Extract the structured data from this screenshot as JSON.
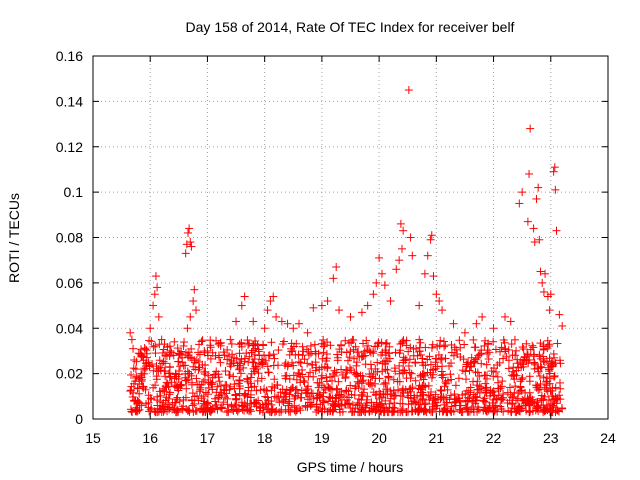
{
  "chart_data": {
    "type": "scatter",
    "title": "Day 158 of 2014, Rate Of TEC Index for receiver belf",
    "xlabel": "GPS time / hours",
    "ylabel": "ROTI / TECUs",
    "xlim": [
      15,
      24
    ],
    "ylim": [
      0,
      0.16
    ],
    "xticks": [
      "15",
      "16",
      "17",
      "18",
      "19",
      "20",
      "21",
      "22",
      "23",
      "24"
    ],
    "yticks": [
      "0",
      "0.02",
      "0.04",
      "0.06",
      "0.08",
      "0.1",
      "0.12",
      "0.14",
      "0.16"
    ],
    "grid": true,
    "marker": "+",
    "color": "#ff0000",
    "series": [
      {
        "name": "ROTI",
        "points": [
          [
            15.65,
            0.038
          ],
          [
            15.68,
            0.035
          ],
          [
            15.7,
            0.031
          ],
          [
            15.72,
            0.026
          ],
          [
            15.75,
            0.022
          ],
          [
            15.8,
            0.029
          ],
          [
            16.0,
            0.04
          ],
          [
            16.05,
            0.05
          ],
          [
            16.08,
            0.055
          ],
          [
            16.1,
            0.063
          ],
          [
            16.12,
            0.058
          ],
          [
            16.15,
            0.045
          ],
          [
            16.2,
            0.035
          ],
          [
            16.25,
            0.033
          ],
          [
            16.35,
            0.03
          ],
          [
            16.5,
            0.029
          ],
          [
            16.62,
            0.073
          ],
          [
            16.64,
            0.077
          ],
          [
            16.66,
            0.082
          ],
          [
            16.68,
            0.084
          ],
          [
            16.7,
            0.078
          ],
          [
            16.72,
            0.076
          ],
          [
            16.65,
            0.04
          ],
          [
            16.7,
            0.045
          ],
          [
            16.75,
            0.052
          ],
          [
            16.77,
            0.057
          ],
          [
            16.8,
            0.048
          ],
          [
            17.0,
            0.03
          ],
          [
            17.2,
            0.028
          ],
          [
            17.4,
            0.035
          ],
          [
            17.5,
            0.043
          ],
          [
            17.6,
            0.05
          ],
          [
            17.65,
            0.054
          ],
          [
            17.8,
            0.043
          ],
          [
            18.0,
            0.04
          ],
          [
            18.05,
            0.048
          ],
          [
            18.1,
            0.052
          ],
          [
            18.15,
            0.054
          ],
          [
            18.2,
            0.045
          ],
          [
            18.3,
            0.043
          ],
          [
            18.4,
            0.042
          ],
          [
            18.5,
            0.04
          ],
          [
            18.6,
            0.042
          ],
          [
            18.75,
            0.038
          ],
          [
            18.85,
            0.049
          ],
          [
            19.0,
            0.05
          ],
          [
            19.1,
            0.052
          ],
          [
            19.2,
            0.062
          ],
          [
            19.25,
            0.067
          ],
          [
            19.3,
            0.048
          ],
          [
            19.5,
            0.045
          ],
          [
            19.7,
            0.047
          ],
          [
            19.8,
            0.05
          ],
          [
            19.9,
            0.055
          ],
          [
            19.95,
            0.06
          ],
          [
            20.0,
            0.071
          ],
          [
            20.05,
            0.064
          ],
          [
            20.1,
            0.059
          ],
          [
            20.2,
            0.052
          ],
          [
            20.3,
            0.066
          ],
          [
            20.35,
            0.07
          ],
          [
            20.4,
            0.075
          ],
          [
            20.38,
            0.086
          ],
          [
            20.42,
            0.083
          ],
          [
            20.55,
            0.08
          ],
          [
            20.58,
            0.072
          ],
          [
            20.52,
            0.145
          ],
          [
            20.7,
            0.05
          ],
          [
            20.8,
            0.064
          ],
          [
            20.85,
            0.072
          ],
          [
            20.9,
            0.079
          ],
          [
            20.92,
            0.081
          ],
          [
            20.95,
            0.063
          ],
          [
            21.0,
            0.055
          ],
          [
            21.05,
            0.052
          ],
          [
            21.1,
            0.048
          ],
          [
            21.3,
            0.042
          ],
          [
            21.5,
            0.038
          ],
          [
            21.7,
            0.042
          ],
          [
            21.8,
            0.045
          ],
          [
            22.0,
            0.04
          ],
          [
            22.2,
            0.045
          ],
          [
            22.3,
            0.043
          ],
          [
            22.45,
            0.095
          ],
          [
            22.5,
            0.1
          ],
          [
            22.6,
            0.087
          ],
          [
            22.62,
            0.108
          ],
          [
            22.64,
            0.128
          ],
          [
            22.7,
            0.084
          ],
          [
            22.72,
            0.078
          ],
          [
            22.75,
            0.097
          ],
          [
            22.78,
            0.102
          ],
          [
            22.8,
            0.079
          ],
          [
            22.82,
            0.065
          ],
          [
            22.85,
            0.06
          ],
          [
            22.88,
            0.056
          ],
          [
            22.9,
            0.064
          ],
          [
            22.95,
            0.054
          ],
          [
            22.98,
            0.048
          ],
          [
            23.0,
            0.055
          ],
          [
            23.05,
            0.109
          ],
          [
            23.07,
            0.111
          ],
          [
            23.08,
            0.101
          ],
          [
            23.1,
            0.083
          ],
          [
            23.15,
            0.046
          ],
          [
            23.2,
            0.041
          ]
        ]
      }
    ]
  }
}
